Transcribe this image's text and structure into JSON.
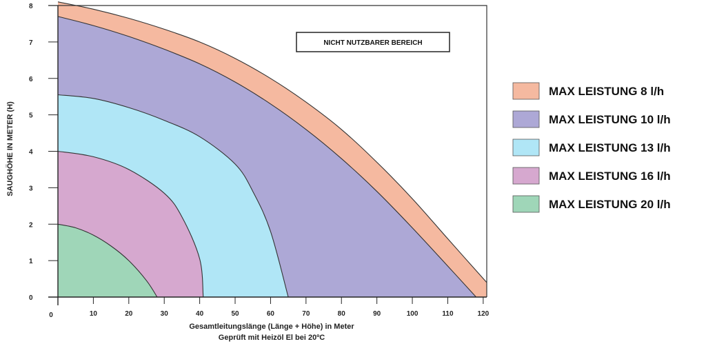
{
  "chart_data": {
    "type": "area",
    "title": "",
    "xlabel": "Gesamtleitungslänge (Länge + Höhe) in Meter",
    "xlabel_sub": "Geprüft mit Heizöl El bei 20ºC",
    "ylabel": "SAUGHÖHE IN METER (H)",
    "xlim": [
      0,
      121
    ],
    "ylim": [
      0,
      8
    ],
    "x_ticks": [
      "0",
      "10",
      "20",
      "30",
      "40",
      "50",
      "60",
      "70",
      "80",
      "90",
      "100",
      "110",
      "120"
    ],
    "y_ticks": [
      "0",
      "1",
      "2",
      "3",
      "4",
      "5",
      "6",
      "7",
      "8"
    ],
    "grid": false,
    "legend_position": "right",
    "annotation": "NICHT NUTZBARER BEREICH",
    "series": [
      {
        "name": "MAX LEISTUNG 8 l/h",
        "color": "#f5b9a0",
        "points": [
          [
            0,
            8.1
          ],
          [
            10,
            7.9
          ],
          [
            20,
            7.65
          ],
          [
            30,
            7.35
          ],
          [
            40,
            7.0
          ],
          [
            50,
            6.55
          ],
          [
            60,
            6.0
          ],
          [
            70,
            5.35
          ],
          [
            80,
            4.6
          ],
          [
            90,
            3.7
          ],
          [
            100,
            2.7
          ],
          [
            110,
            1.6
          ],
          [
            121,
            0.4
          ]
        ]
      },
      {
        "name": "MAX LEISTUNG 10 l/h",
        "color": "#ada8d6",
        "points": [
          [
            0,
            7.7
          ],
          [
            10,
            7.45
          ],
          [
            20,
            7.15
          ],
          [
            30,
            6.8
          ],
          [
            40,
            6.4
          ],
          [
            50,
            5.9
          ],
          [
            60,
            5.3
          ],
          [
            70,
            4.6
          ],
          [
            80,
            3.8
          ],
          [
            90,
            2.9
          ],
          [
            100,
            1.9
          ],
          [
            110,
            0.85
          ],
          [
            118,
            0
          ]
        ]
      },
      {
        "name": "MAX LEISTUNG 13 l/h",
        "color": "#b0e6f6",
        "points": [
          [
            0,
            5.55
          ],
          [
            10,
            5.45
          ],
          [
            20,
            5.2
          ],
          [
            30,
            4.85
          ],
          [
            40,
            4.4
          ],
          [
            50,
            3.65
          ],
          [
            55,
            2.9
          ],
          [
            60,
            1.8
          ],
          [
            65,
            0
          ]
        ]
      },
      {
        "name": "MAX LEISTUNG 16 l/h",
        "color": "#d6a8cf",
        "points": [
          [
            0,
            4.0
          ],
          [
            10,
            3.85
          ],
          [
            20,
            3.5
          ],
          [
            30,
            2.85
          ],
          [
            35,
            2.2
          ],
          [
            40,
            1.05
          ],
          [
            41,
            0
          ]
        ]
      },
      {
        "name": "MAX LEISTUNG 20 l/h",
        "color": "#9fd6b8",
        "points": [
          [
            0,
            2.0
          ],
          [
            5,
            1.9
          ],
          [
            10,
            1.7
          ],
          [
            15,
            1.4
          ],
          [
            20,
            1.0
          ],
          [
            25,
            0.45
          ],
          [
            28,
            0
          ]
        ]
      }
    ]
  }
}
